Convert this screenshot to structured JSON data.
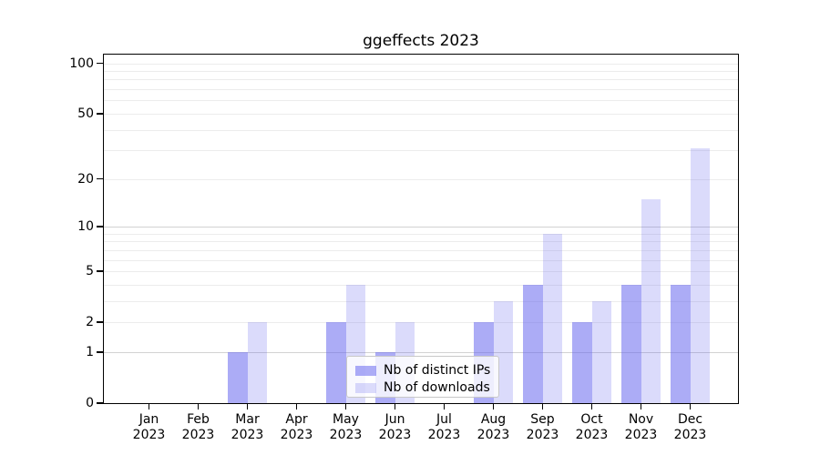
{
  "chart_data": {
    "type": "bar",
    "title": "ggeffects 2023",
    "categories": [
      "Jan",
      "Feb",
      "Mar",
      "Apr",
      "May",
      "Jun",
      "Jul",
      "Aug",
      "Sep",
      "Oct",
      "Nov",
      "Dec"
    ],
    "x_tick_year": "2023",
    "series": [
      {
        "name": "Nb of distinct IPs",
        "color": "rgba(104,104,238,0.55)",
        "solid_hex": "#a8a8f5",
        "values": [
          0,
          0,
          1,
          0,
          2,
          1,
          0,
          2,
          4,
          2,
          4,
          4
        ]
      },
      {
        "name": "Nb of downloads",
        "color": "rgba(104,104,238,0.24)",
        "solid_hex": "#dbdbfa",
        "values": [
          0,
          0,
          2,
          0,
          4,
          2,
          0,
          3,
          9,
          3,
          15,
          31
        ]
      }
    ],
    "y_axis": {
      "scale": "log10(1+x)",
      "ticks": [
        0,
        1,
        2,
        5,
        10,
        20,
        50,
        100
      ],
      "range_max": 113
    },
    "x_axis": {
      "tick_count": 12
    },
    "grid": {
      "minor_values": [
        2,
        3,
        4,
        5,
        6,
        7,
        8,
        9,
        20,
        30,
        40,
        50,
        60,
        70,
        80,
        90,
        100
      ],
      "major_values": [
        1,
        10
      ],
      "minor_color": "#ececec",
      "major_color": "#d2d2d2"
    },
    "legend": {
      "position": "lower-center-inside",
      "entries": [
        "Nb of distinct IPs",
        "Nb of downloads"
      ]
    }
  }
}
